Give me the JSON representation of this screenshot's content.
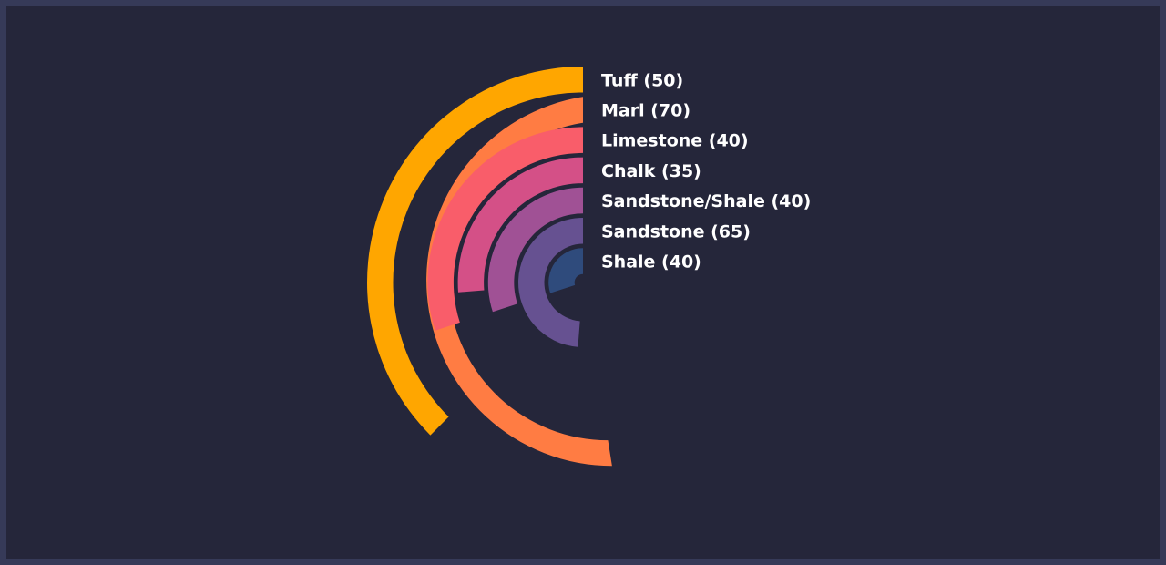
{
  "chart_data": {
    "type": "radial-bar",
    "max": 100,
    "series": [
      {
        "name": "Tuff",
        "label": "Tuff (50)",
        "value": 50,
        "color": "#ffa600"
      },
      {
        "name": "Marl",
        "label": "Marl (70)",
        "value": 70,
        "color": "#ff7c43"
      },
      {
        "name": "Limestone",
        "label": "Limestone (40)",
        "value": 40,
        "color": "#f95d6a"
      },
      {
        "name": "Chalk",
        "label": "Chalk (35)",
        "value": 35,
        "color": "#d45087"
      },
      {
        "name": "Sandstone/Shale",
        "label": "Sandstone/Shale (40)",
        "value": 40,
        "color": "#a05195"
      },
      {
        "name": "Sandstone",
        "label": "Sandstone (65)",
        "value": 65,
        "color": "#665191"
      },
      {
        "name": "Shale",
        "label": "Shale (40)",
        "value": 40,
        "color": "#2f4b7c"
      }
    ],
    "colors": {
      "track": "#2e2e42",
      "background": "#25263a",
      "border": "#363a58"
    }
  }
}
